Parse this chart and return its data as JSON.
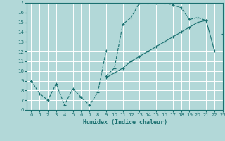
{
  "background_color": "#b2d8d8",
  "grid_color": "#ffffff",
  "line_color": "#1a7070",
  "xlabel": "Humidex (Indice chaleur)",
  "ylim": [
    6,
    17
  ],
  "xlim": [
    -0.5,
    23
  ],
  "yticks": [
    6,
    7,
    8,
    9,
    10,
    11,
    12,
    13,
    14,
    15,
    16,
    17
  ],
  "xticks": [
    0,
    1,
    2,
    3,
    4,
    5,
    6,
    7,
    8,
    9,
    10,
    11,
    12,
    13,
    14,
    15,
    16,
    17,
    18,
    19,
    20,
    21,
    22,
    23
  ],
  "line1_y": [
    9.0,
    7.7,
    7.0,
    8.7,
    6.5,
    8.2,
    7.3,
    6.5,
    7.8,
    12.1,
    null,
    null,
    null,
    null,
    null,
    null,
    null,
    null,
    null,
    null,
    null,
    null,
    null,
    null
  ],
  "line2_y": [
    9.0,
    null,
    null,
    null,
    null,
    null,
    null,
    null,
    null,
    9.5,
    10.3,
    14.8,
    15.5,
    17.0,
    17.0,
    17.0,
    17.0,
    16.8,
    16.5,
    15.3,
    15.5,
    15.2,
    null,
    13.8
  ],
  "line2b_y": [
    null,
    null,
    null,
    null,
    null,
    null,
    null,
    null,
    null,
    null,
    null,
    null,
    null,
    null,
    null,
    null,
    null,
    null,
    null,
    null,
    15.5,
    15.2,
    null,
    12.1
  ],
  "line3_y": [
    null,
    null,
    null,
    null,
    null,
    null,
    null,
    null,
    null,
    9.3,
    9.8,
    10.3,
    11.0,
    11.5,
    12.0,
    12.5,
    13.0,
    13.5,
    14.0,
    14.5,
    15.0,
    15.2,
    12.1,
    null
  ],
  "fig_width": 3.2,
  "fig_height": 2.0,
  "dpi": 100
}
